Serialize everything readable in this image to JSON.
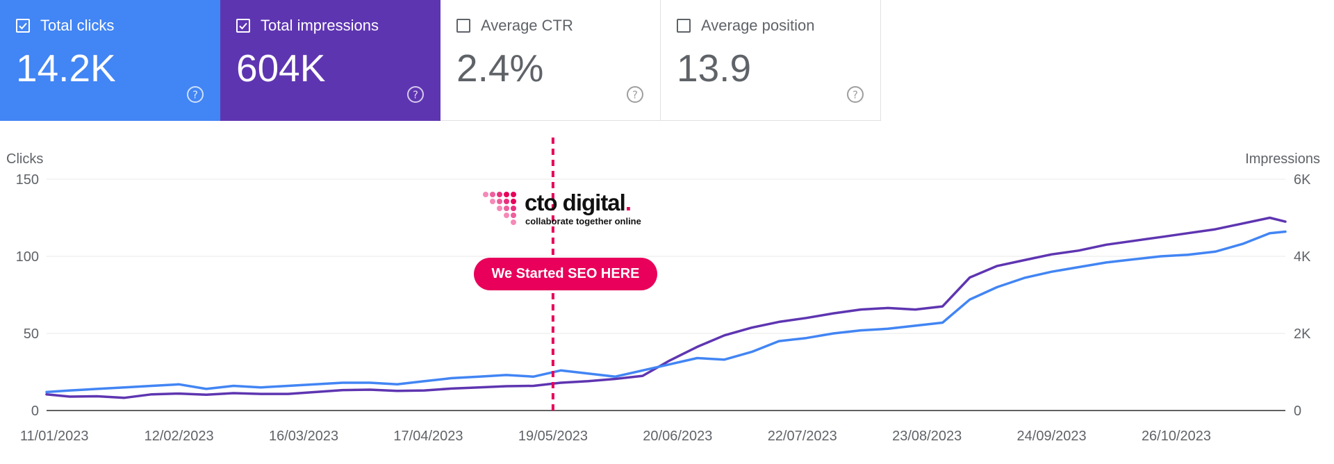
{
  "metric_cards": [
    {
      "label": "Total clicks",
      "value": "14.2K",
      "checked": true,
      "color": "#4285f4"
    },
    {
      "label": "Total impressions",
      "value": "604K",
      "checked": true,
      "color": "#5e35b1"
    },
    {
      "label": "Average CTR",
      "value": "2.4%",
      "checked": false,
      "color": "#ffffff"
    },
    {
      "label": "Average position",
      "value": "13.9",
      "checked": false,
      "color": "#ffffff"
    }
  ],
  "annotation": {
    "logo_name": "cto digital",
    "logo_dot": ".",
    "logo_tagline": "collaborate together online",
    "badge": "We Started SEO HERE",
    "marker_date": "2023-05-19",
    "accent": "#e8005a"
  },
  "chart_data": {
    "type": "line",
    "x_start": "2023-01-09",
    "x_end": "2023-11-23",
    "xticks": [
      "11/01/2023",
      "12/02/2023",
      "16/03/2023",
      "17/04/2023",
      "19/05/2023",
      "20/06/2023",
      "22/07/2023",
      "23/08/2023",
      "24/09/2023",
      "26/10/2023"
    ],
    "ylabel_left": "Clicks",
    "ylabel_right": "Impressions",
    "yticks_left": [
      "0",
      "50",
      "100",
      "150"
    ],
    "yticks_right": [
      "0",
      "2K",
      "4K",
      "6K"
    ],
    "ylim_left": [
      0,
      150
    ],
    "ylim_right": [
      0,
      6000
    ],
    "grid": true,
    "series": [
      {
        "name": "Impressions",
        "axis": "right",
        "color": "#5e35b1",
        "x": [
          "2023-01-09",
          "2023-01-15",
          "2023-01-22",
          "2023-01-29",
          "2023-02-05",
          "2023-02-12",
          "2023-02-19",
          "2023-02-26",
          "2023-03-05",
          "2023-03-12",
          "2023-03-19",
          "2023-03-26",
          "2023-04-02",
          "2023-04-09",
          "2023-04-16",
          "2023-04-23",
          "2023-04-30",
          "2023-05-07",
          "2023-05-14",
          "2023-05-21",
          "2023-05-28",
          "2023-06-04",
          "2023-06-11",
          "2023-06-18",
          "2023-06-25",
          "2023-07-02",
          "2023-07-09",
          "2023-07-16",
          "2023-07-23",
          "2023-07-30",
          "2023-08-06",
          "2023-08-13",
          "2023-08-20",
          "2023-08-27",
          "2023-09-03",
          "2023-09-10",
          "2023-09-17",
          "2023-09-24",
          "2023-10-01",
          "2023-10-08",
          "2023-10-15",
          "2023-10-22",
          "2023-10-29",
          "2023-11-05",
          "2023-11-12",
          "2023-11-19",
          "2023-11-23"
        ],
        "values": [
          420,
          360,
          370,
          330,
          420,
          440,
          410,
          450,
          430,
          430,
          480,
          530,
          540,
          510,
          520,
          570,
          600,
          630,
          640,
          720,
          760,
          820,
          900,
          1300,
          1650,
          1950,
          2150,
          2300,
          2400,
          2520,
          2620,
          2660,
          2620,
          2700,
          3450,
          3750,
          3900,
          4050,
          4150,
          4300,
          4400,
          4500,
          4600,
          4700,
          4850,
          5000,
          4900
        ]
      },
      {
        "name": "Clicks",
        "axis": "left",
        "color": "#4285f4",
        "x": [
          "2023-01-09",
          "2023-01-15",
          "2023-01-22",
          "2023-01-29",
          "2023-02-05",
          "2023-02-12",
          "2023-02-19",
          "2023-02-26",
          "2023-03-05",
          "2023-03-12",
          "2023-03-19",
          "2023-03-26",
          "2023-04-02",
          "2023-04-09",
          "2023-04-16",
          "2023-04-23",
          "2023-04-30",
          "2023-05-07",
          "2023-05-14",
          "2023-05-21",
          "2023-05-28",
          "2023-06-04",
          "2023-06-11",
          "2023-06-18",
          "2023-06-25",
          "2023-07-02",
          "2023-07-09",
          "2023-07-16",
          "2023-07-23",
          "2023-07-30",
          "2023-08-06",
          "2023-08-13",
          "2023-08-20",
          "2023-08-27",
          "2023-09-03",
          "2023-09-10",
          "2023-09-17",
          "2023-09-24",
          "2023-10-01",
          "2023-10-08",
          "2023-10-15",
          "2023-10-22",
          "2023-10-29",
          "2023-11-05",
          "2023-11-12",
          "2023-11-19",
          "2023-11-23"
        ],
        "values": [
          12,
          13,
          14,
          15,
          16,
          17,
          14,
          16,
          15,
          16,
          17,
          18,
          18,
          17,
          19,
          21,
          22,
          23,
          22,
          26,
          24,
          22,
          26,
          30,
          34,
          33,
          38,
          45,
          47,
          50,
          52,
          53,
          55,
          57,
          72,
          80,
          86,
          90,
          93,
          96,
          98,
          100,
          101,
          103,
          108,
          115,
          116
        ]
      }
    ]
  }
}
